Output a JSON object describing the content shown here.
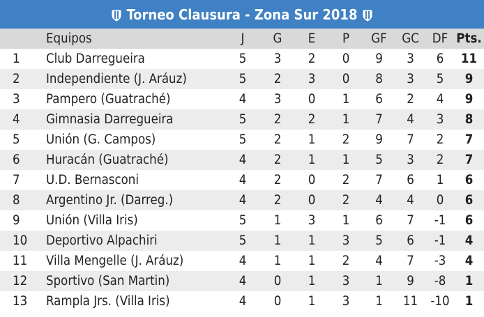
{
  "title": "Torneo Clausura - Zona Sur 2018",
  "icons": {
    "left": "club-shield-icon",
    "right": "club-shield-icon"
  },
  "colors": {
    "header_bg": "#3f81c4",
    "column_header_bg": "#d9d9d9",
    "row_alt_bg": "#ececec"
  },
  "columns": [
    "",
    "Equipos",
    "J",
    "G",
    "E",
    "P",
    "GF",
    "GC",
    "DF",
    "Pts."
  ],
  "rows": [
    [
      "1",
      "Club Darregueira",
      "5",
      "3",
      "2",
      "0",
      "9",
      "3",
      "6",
      "11"
    ],
    [
      "2",
      "Independiente (J. Aráuz)",
      "5",
      "2",
      "3",
      "0",
      "8",
      "3",
      "5",
      "9"
    ],
    [
      "3",
      "Pampero (Guatraché)",
      "4",
      "3",
      "0",
      "1",
      "6",
      "2",
      "4",
      "9"
    ],
    [
      "4",
      "Gimnasia Darregueira",
      "5",
      "2",
      "2",
      "1",
      "7",
      "4",
      "3",
      "8"
    ],
    [
      "5",
      "Unión (G. Campos)",
      "5",
      "2",
      "1",
      "2",
      "9",
      "7",
      "2",
      "7"
    ],
    [
      "6",
      "Huracán (Guatraché)",
      "4",
      "2",
      "1",
      "1",
      "5",
      "3",
      "2",
      "7"
    ],
    [
      "7",
      "U.D. Bernasconi",
      "4",
      "2",
      "0",
      "2",
      "7",
      "6",
      "1",
      "6"
    ],
    [
      "8",
      "Argentino Jr. (Darreg.)",
      "4",
      "2",
      "0",
      "2",
      "4",
      "4",
      "0",
      "6"
    ],
    [
      "9",
      "Unión (Villa Iris)",
      "5",
      "1",
      "3",
      "1",
      "6",
      "7",
      "-1",
      "6"
    ],
    [
      "10",
      "Deportivo Alpachiri",
      "5",
      "1",
      "1",
      "3",
      "5",
      "6",
      "-1",
      "4"
    ],
    [
      "11",
      "Villa Mengelle (J. Aráuz)",
      "4",
      "1",
      "1",
      "2",
      "4",
      "7",
      "-3",
      "4"
    ],
    [
      "12",
      "Sportivo (San Martin)",
      "4",
      "0",
      "1",
      "3",
      "1",
      "9",
      "-8",
      "1"
    ],
    [
      "13",
      "Rampla Jrs. (Villa Iris)",
      "4",
      "0",
      "1",
      "3",
      "1",
      "11",
      "-10",
      "1"
    ]
  ]
}
